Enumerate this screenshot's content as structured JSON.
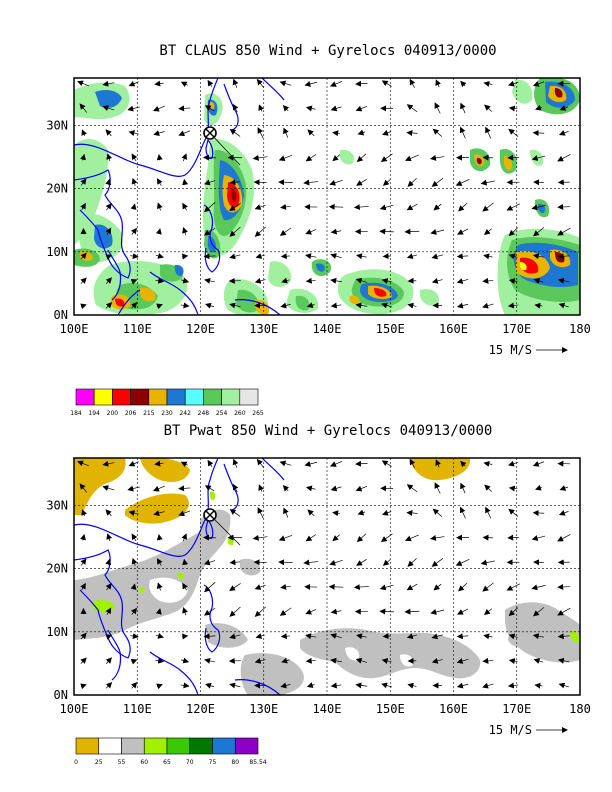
{
  "panels": [
    {
      "title": "BT CLAUS 850 Wind + Gyrelocs 040913/0000",
      "x_ticks": [
        "100E",
        "110E",
        "120E",
        "130E",
        "140E",
        "150E",
        "160E",
        "170E",
        "180"
      ],
      "y_ticks": [
        "0N",
        "10N",
        "20N",
        "30N"
      ],
      "vector_ref": "15 M/S",
      "colorbar": {
        "labels": [
          "184",
          "194",
          "200",
          "206",
          "215",
          "230",
          "242",
          "248",
          "254",
          "260",
          "265"
        ],
        "colors": [
          "#ff00ff",
          "#ffff00",
          "#ff0000",
          "#8b0000",
          "#e8b400",
          "#1e78d2",
          "#55ffff",
          "#5ac85a",
          "#a0f0a0",
          "#e6e6e6"
        ]
      }
    },
    {
      "title": "BT Pwat 850 Wind + Gyrelocs 040913/0000",
      "x_ticks": [
        "100E",
        "110E",
        "120E",
        "130E",
        "140E",
        "150E",
        "160E",
        "170E",
        "180"
      ],
      "y_ticks": [
        "0N",
        "10N",
        "20N",
        "30N"
      ],
      "vector_ref": "15 M/S",
      "colorbar": {
        "labels": [
          "0",
          "25",
          "55",
          "60",
          "65",
          "70",
          "75",
          "80",
          "85.54"
        ],
        "colors": [
          "#e0b400",
          "#ffffff",
          "#c0c0c0",
          "#a0f000",
          "#3cc800",
          "#007800",
          "#1e78d2",
          "#8c00c8"
        ]
      }
    }
  ],
  "colors": {
    "coastline": "#0000ff",
    "grid": "#000000",
    "cloud_warm": "#a0f0a0",
    "cloud_green": "#5ac85a",
    "cloud_blue": "#1e78d2",
    "cloud_orange": "#e8b400",
    "cloud_red": "#ff0000",
    "cloud_darkred": "#8b0000",
    "pwat_gray": "#c0c0c0",
    "pwat_yellow": "#e0b400",
    "pwat_lime": "#a0f000"
  },
  "gyre_marker": {
    "lon": 122,
    "lat": 27.5,
    "icon": "circle-x-icon"
  }
}
